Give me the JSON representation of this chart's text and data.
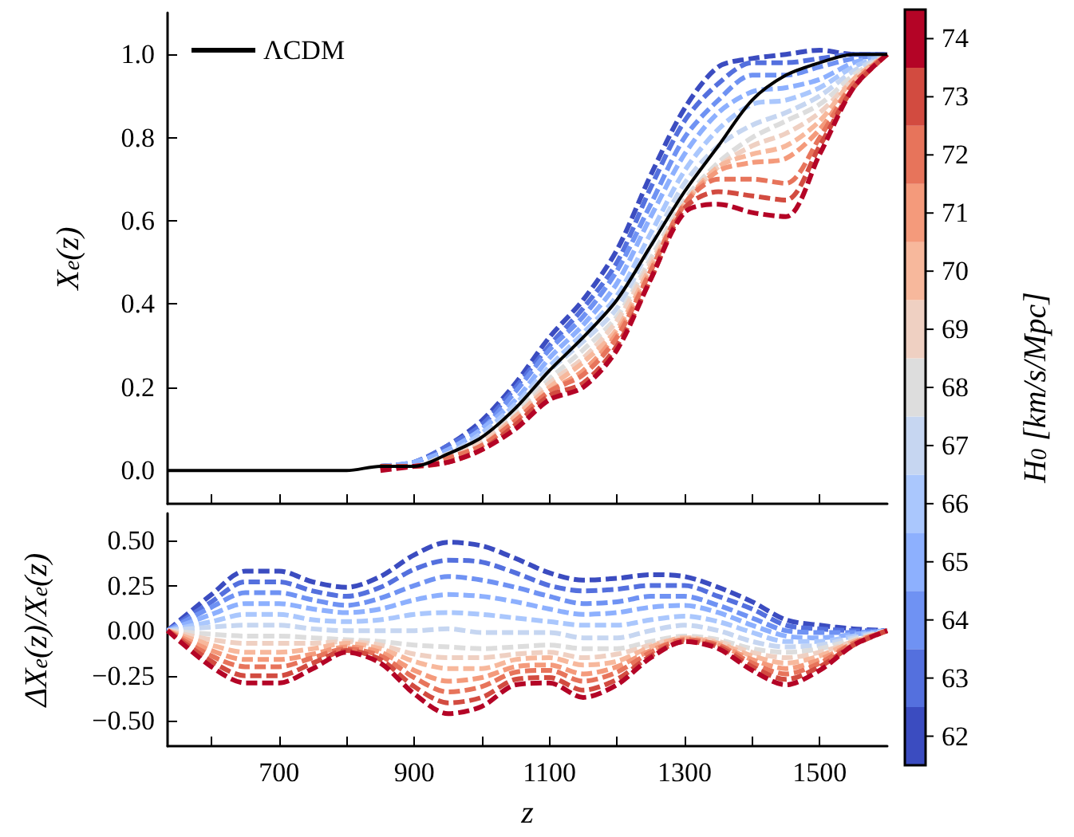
{
  "chart_data": [
    {
      "type": "line",
      "ylabel": "X$_{e}$(z)",
      "clabel": "H$_{0}$ [km/s/Mpc]",
      "clim": [
        61.5,
        74.5
      ],
      "cticks": [
        62,
        63,
        64,
        65,
        66,
        67,
        68,
        69,
        70,
        71,
        72,
        73,
        74
      ],
      "xlim": [
        535,
        1600
      ],
      "ylim": [
        -0.08,
        1.1
      ],
      "xticks": [
        {
          "value": 600,
          "label": null
        },
        {
          "value": 700,
          "label": null
        },
        {
          "value": 800,
          "label": null
        },
        {
          "value": 900,
          "label": null
        },
        {
          "value": 1000,
          "label": null
        },
        {
          "value": 1100,
          "label": null
        },
        {
          "value": 1200,
          "label": null
        },
        {
          "value": 1300,
          "label": null
        },
        {
          "value": 1400,
          "label": null
        },
        {
          "value": 1500,
          "label": null
        }
      ],
      "yticks": [
        {
          "value": 0,
          "label": "0.0"
        },
        {
          "value": 0.2,
          "label": "0.2"
        },
        {
          "value": 0.4,
          "label": "0.4"
        },
        {
          "value": 0.6,
          "label": "0.6"
        },
        {
          "value": 0.8,
          "label": "0.8"
        },
        {
          "value": 1,
          "label": "1.0"
        }
      ],
      "tick_labels": "y",
      "grid": false,
      "legend": "top left",
      "marker": "none",
      "line_style": "dashed",
      "x": [
        535,
        600,
        650,
        700,
        750,
        800,
        850,
        900,
        950,
        1000,
        1050,
        1100,
        1150,
        1200,
        1250,
        1300,
        1350,
        1400,
        1450,
        1500,
        1550,
        1600
      ],
      "series": [
        {
          "color": "#3b4cc0",
          "values": [
            null,
            null,
            null,
            null,
            null,
            null,
            0.01,
            0.02,
            0.06,
            0.12,
            0.21,
            0.32,
            0.41,
            0.53,
            0.71,
            0.87,
            0.97,
            0.99,
            1.0,
            1.01,
            1.0,
            1.0
          ]
        },
        {
          "color": "#5470de",
          "values": [
            null,
            null,
            null,
            null,
            null,
            null,
            0.01,
            0.02,
            0.06,
            0.11,
            0.2,
            0.3,
            0.39,
            0.5,
            0.68,
            0.84,
            0.93,
            0.98,
            0.98,
            0.99,
            1.0,
            1.0
          ]
        },
        {
          "color": "#6f92f3",
          "values": [
            null,
            null,
            null,
            null,
            null,
            null,
            0.01,
            0.02,
            0.05,
            0.1,
            0.19,
            0.29,
            0.37,
            0.48,
            0.64,
            0.8,
            0.89,
            0.95,
            0.95,
            0.97,
            0.99,
            1.0
          ]
        },
        {
          "color": "#8db0fe",
          "values": [
            null,
            null,
            null,
            null,
            null,
            null,
            0.01,
            0.02,
            0.05,
            0.1,
            0.17,
            0.27,
            0.35,
            0.45,
            0.61,
            0.76,
            0.86,
            0.91,
            0.92,
            0.94,
            0.98,
            1.0
          ]
        },
        {
          "color": "#aac7fd",
          "values": [
            null,
            null,
            null,
            null,
            null,
            null,
            0.01,
            0.01,
            0.04,
            0.09,
            0.16,
            0.25,
            0.33,
            0.42,
            0.57,
            0.72,
            0.82,
            0.88,
            0.89,
            0.92,
            0.97,
            1.0
          ]
        },
        {
          "color": "#c6d6f1",
          "values": [
            null,
            null,
            null,
            null,
            null,
            null,
            0.01,
            0.01,
            0.04,
            0.08,
            0.15,
            0.24,
            0.31,
            0.39,
            0.54,
            0.69,
            0.78,
            0.83,
            0.86,
            0.9,
            0.96,
            1.0
          ]
        },
        {
          "color": "#dddddd",
          "values": [
            null,
            null,
            null,
            null,
            null,
            null,
            0.01,
            0.01,
            0.04,
            0.07,
            0.14,
            0.22,
            0.29,
            0.37,
            0.51,
            0.65,
            0.74,
            0.8,
            0.84,
            0.88,
            0.95,
            1.0
          ]
        },
        {
          "color": "#efd0c2",
          "values": [
            null,
            null,
            null,
            null,
            null,
            null,
            0.01,
            0.01,
            0.03,
            0.07,
            0.13,
            0.21,
            0.27,
            0.36,
            0.5,
            0.64,
            0.73,
            0.78,
            0.81,
            0.86,
            0.94,
            1.0
          ]
        },
        {
          "color": "#f7b89c",
          "values": [
            null,
            null,
            null,
            null,
            null,
            null,
            0.01,
            0.01,
            0.03,
            0.06,
            0.13,
            0.2,
            0.26,
            0.34,
            0.49,
            0.64,
            0.73,
            0.76,
            0.78,
            0.84,
            0.94,
            1.0
          ]
        },
        {
          "color": "#f49a7b",
          "values": [
            null,
            null,
            null,
            null,
            null,
            null,
            0.01,
            0.01,
            0.03,
            0.06,
            0.12,
            0.19,
            0.24,
            0.33,
            0.48,
            0.64,
            0.72,
            0.74,
            0.75,
            0.82,
            0.93,
            1.0
          ]
        },
        {
          "color": "#e7745b",
          "values": [
            null,
            null,
            null,
            null,
            null,
            null,
            0.01,
            0.01,
            0.03,
            0.06,
            0.12,
            0.19,
            0.23,
            0.32,
            0.48,
            0.64,
            0.7,
            0.7,
            0.69,
            0.8,
            0.93,
            1.0
          ]
        },
        {
          "color": "#d24b40",
          "values": [
            null,
            null,
            null,
            null,
            null,
            null,
            0.01,
            0.01,
            0.02,
            0.05,
            0.11,
            0.18,
            0.21,
            0.3,
            0.46,
            0.63,
            0.67,
            0.66,
            0.65,
            0.78,
            0.92,
            1.0
          ]
        },
        {
          "color": "#b40426",
          "values": [
            null,
            null,
            null,
            null,
            null,
            null,
            0,
            0.01,
            0.02,
            0.05,
            0.1,
            0.17,
            0.2,
            0.29,
            0.46,
            0.62,
            0.64,
            0.62,
            0.61,
            0.76,
            0.92,
            1.0
          ]
        },
        {
          "name": "ΛCDM",
          "color": "#000000",
          "line_style": "solid",
          "values": [
            0,
            0,
            0,
            0,
            0,
            0,
            0.01,
            0.01,
            0.04,
            0.08,
            0.15,
            0.24,
            0.32,
            0.41,
            0.54,
            0.67,
            0.78,
            0.89,
            0.95,
            0.98,
            1.0,
            1.0
          ]
        }
      ]
    },
    {
      "type": "line",
      "xlabel": "z",
      "ylabel": "ΔX$_{e}$(z)/X$_{e}$(z)",
      "xlim": [
        535,
        1600
      ],
      "ylim": [
        -0.64,
        0.65
      ],
      "xticks": [
        {
          "value": 600,
          "label": null
        },
        {
          "value": 700,
          "label": "700"
        },
        {
          "value": 800,
          "label": null
        },
        {
          "value": 900,
          "label": "900"
        },
        {
          "value": 1000,
          "label": null
        },
        {
          "value": 1100,
          "label": "1100"
        },
        {
          "value": 1200,
          "label": null
        },
        {
          "value": 1300,
          "label": "1300"
        },
        {
          "value": 1400,
          "label": null
        },
        {
          "value": 1500,
          "label": "1500"
        }
      ],
      "yticks": [
        {
          "value": -0.5,
          "label": "−0.50"
        },
        {
          "value": -0.25,
          "label": "−0.25"
        },
        {
          "value": 0,
          "label": "0.00"
        },
        {
          "value": 0.25,
          "label": "0.25"
        },
        {
          "value": 0.5,
          "label": "0.50"
        }
      ],
      "grid": false,
      "marker": "none",
      "line_style": "dashed",
      "x": [
        535,
        600,
        650,
        700,
        750,
        800,
        850,
        900,
        950,
        1000,
        1050,
        1100,
        1150,
        1200,
        1250,
        1300,
        1350,
        1400,
        1450,
        1500,
        1550,
        1600
      ],
      "series": [
        {
          "color": "#3b4cc0",
          "values": [
            0,
            0.2,
            0.33,
            0.33,
            0.27,
            0.24,
            0.3,
            0.42,
            0.49,
            0.47,
            0.4,
            0.32,
            0.28,
            0.29,
            0.31,
            0.3,
            0.24,
            0.16,
            0.06,
            0.03,
            0.01,
            0
          ]
        },
        {
          "color": "#5470de",
          "values": [
            0,
            0.16,
            0.27,
            0.27,
            0.22,
            0.19,
            0.24,
            0.34,
            0.39,
            0.38,
            0.32,
            0.25,
            0.22,
            0.23,
            0.25,
            0.25,
            0.19,
            0.12,
            0.03,
            0.01,
            0,
            0
          ]
        },
        {
          "color": "#6f92f3",
          "values": [
            0,
            0.13,
            0.21,
            0.21,
            0.17,
            0.14,
            0.18,
            0.25,
            0.3,
            0.28,
            0.24,
            0.19,
            0.15,
            0.16,
            0.19,
            0.19,
            0.14,
            0.07,
            0,
            -0.01,
            -0.01,
            0
          ]
        },
        {
          "color": "#8db0fe",
          "values": [
            0,
            0.09,
            0.15,
            0.15,
            0.12,
            0.1,
            0.12,
            0.17,
            0.2,
            0.19,
            0.16,
            0.12,
            0.09,
            0.1,
            0.13,
            0.14,
            0.1,
            0.03,
            -0.03,
            -0.04,
            -0.02,
            0
          ]
        },
        {
          "color": "#aac7fd",
          "values": [
            0,
            0.05,
            0.09,
            0.09,
            0.06,
            0.05,
            0.06,
            0.09,
            0.1,
            0.09,
            0.07,
            0.05,
            0.03,
            0.03,
            0.06,
            0.08,
            0.05,
            -0.01,
            -0.06,
            -0.06,
            -0.03,
            0
          ]
        },
        {
          "color": "#c6d6f1",
          "values": [
            0,
            0.02,
            0.03,
            0.03,
            0.01,
            0,
            0,
            0,
            0.01,
            -0.01,
            -0.01,
            -0.01,
            -0.04,
            -0.04,
            0,
            0.03,
            0,
            -0.06,
            -0.09,
            -0.08,
            -0.04,
            0
          ]
        },
        {
          "color": "#dddddd",
          "values": [
            0,
            -0.02,
            -0.03,
            -0.03,
            -0.04,
            -0.05,
            -0.06,
            -0.08,
            -0.09,
            -0.1,
            -0.09,
            -0.08,
            -0.1,
            -0.1,
            -0.06,
            -0.03,
            -0.05,
            -0.1,
            -0.12,
            -0.1,
            -0.05,
            0
          ]
        },
        {
          "color": "#efd0c2",
          "values": [
            0,
            -0.05,
            -0.07,
            -0.07,
            -0.07,
            -0.06,
            -0.08,
            -0.13,
            -0.15,
            -0.15,
            -0.13,
            -0.12,
            -0.15,
            -0.13,
            -0.08,
            -0.04,
            -0.06,
            -0.12,
            -0.15,
            -0.12,
            -0.06,
            0
          ]
        },
        {
          "color": "#f7b89c",
          "values": [
            0,
            -0.08,
            -0.12,
            -0.12,
            -0.1,
            -0.07,
            -0.1,
            -0.17,
            -0.21,
            -0.21,
            -0.16,
            -0.15,
            -0.19,
            -0.17,
            -0.09,
            -0.04,
            -0.07,
            -0.14,
            -0.18,
            -0.14,
            -0.06,
            0
          ]
        },
        {
          "color": "#f49a7b",
          "values": [
            0,
            -0.11,
            -0.16,
            -0.16,
            -0.13,
            -0.09,
            -0.12,
            -0.22,
            -0.28,
            -0.26,
            -0.2,
            -0.19,
            -0.24,
            -0.2,
            -0.11,
            -0.05,
            -0.08,
            -0.16,
            -0.21,
            -0.16,
            -0.07,
            0
          ]
        },
        {
          "color": "#e7745b",
          "values": [
            0,
            -0.14,
            -0.2,
            -0.2,
            -0.15,
            -0.1,
            -0.14,
            -0.26,
            -0.34,
            -0.31,
            -0.23,
            -0.22,
            -0.28,
            -0.23,
            -0.12,
            -0.05,
            -0.08,
            -0.18,
            -0.24,
            -0.18,
            -0.07,
            0
          ]
        },
        {
          "color": "#d24b40",
          "values": [
            0,
            -0.17,
            -0.25,
            -0.25,
            -0.18,
            -0.11,
            -0.16,
            -0.31,
            -0.4,
            -0.37,
            -0.27,
            -0.26,
            -0.33,
            -0.27,
            -0.14,
            -0.06,
            -0.09,
            -0.2,
            -0.27,
            -0.2,
            -0.08,
            0
          ]
        },
        {
          "color": "#b40426",
          "values": [
            0,
            -0.2,
            -0.29,
            -0.29,
            -0.21,
            -0.12,
            -0.18,
            -0.35,
            -0.46,
            -0.42,
            -0.3,
            -0.29,
            -0.37,
            -0.3,
            -0.15,
            -0.06,
            -0.1,
            -0.22,
            -0.3,
            -0.22,
            -0.08,
            0
          ]
        }
      ]
    }
  ]
}
